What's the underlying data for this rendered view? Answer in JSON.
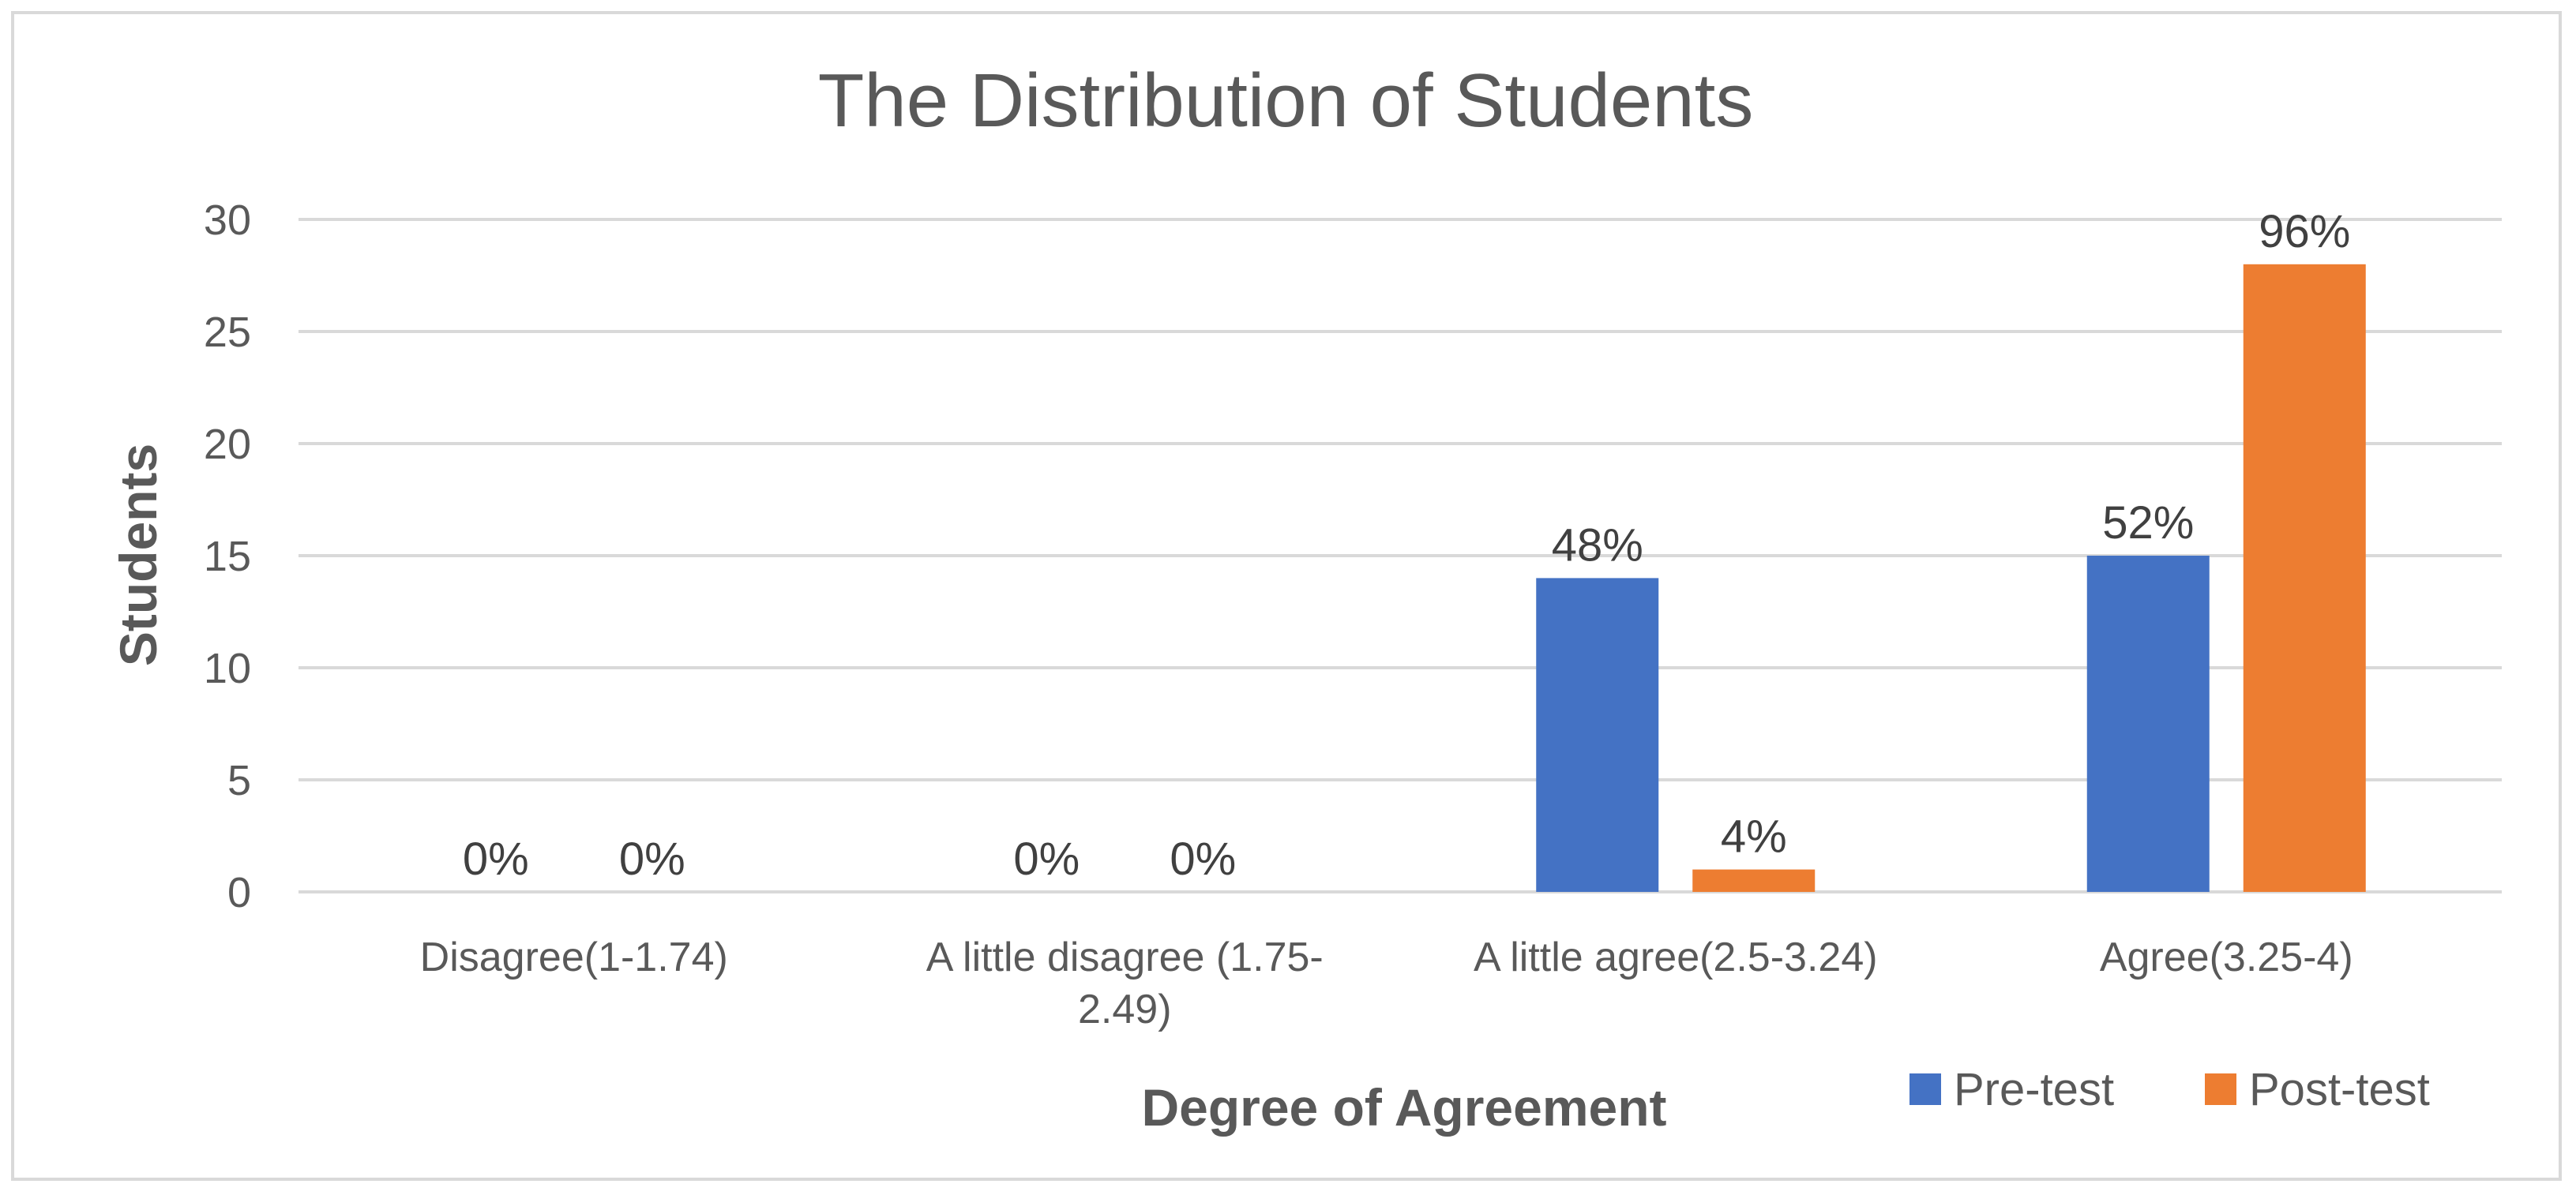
{
  "chart_data": {
    "type": "bar",
    "title": "The Distribution of Students",
    "xlabel": "Degree of Agreement",
    "ylabel": "Students",
    "ylim": [
      0,
      30
    ],
    "yticks": [
      0,
      5,
      10,
      15,
      20,
      25,
      30
    ],
    "grid": true,
    "legend_position": "bottom-right",
    "categories": [
      [
        "Disagree(1-1.74)"
      ],
      [
        "A little disagree (1.75-",
        "2.49)"
      ],
      [
        "A little agree(2.5-3.24)"
      ],
      [
        "Agree(3.25-4)"
      ]
    ],
    "series": [
      {
        "name": "Pre-test",
        "color": "#4472c4",
        "values": [
          0,
          0,
          14,
          15
        ],
        "labels": [
          "0%",
          "0%",
          "48%",
          "52%"
        ]
      },
      {
        "name": "Post-test",
        "color": "#ed7d31",
        "values": [
          0,
          0,
          1,
          28
        ],
        "labels": [
          "0%",
          "0%",
          "4%",
          "96%"
        ]
      }
    ]
  }
}
